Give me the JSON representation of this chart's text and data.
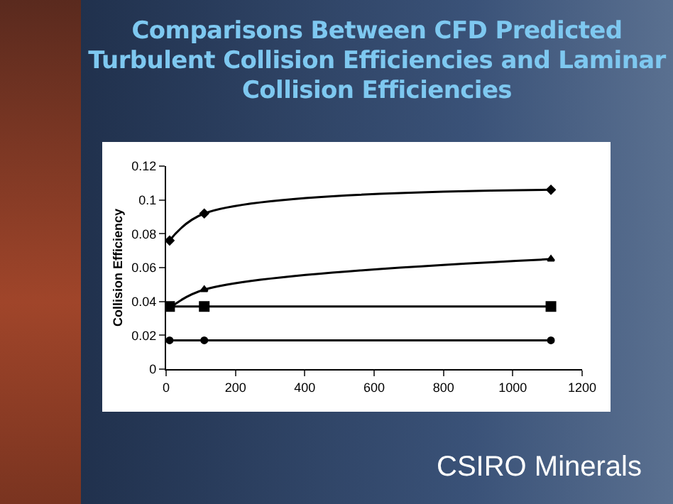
{
  "chart_data": {
    "type": "line",
    "title": "Comparisons Between CFD Predicted Turbulent Collision Efficiencies and Laminar Collision Efficiencies",
    "ylabel": "Collision Efficiency",
    "annotations": [
      "CSIRO Minerals"
    ],
    "x": [
      10,
      110,
      1110
    ],
    "series": [
      {
        "color": "#000000",
        "marker": "diamond",
        "values": [
          0.076,
          0.092,
          0.106
        ]
      },
      {
        "color": "#000000",
        "marker": "triangle",
        "values": [
          0.036,
          0.047,
          0.065
        ]
      },
      {
        "color": "#000000",
        "marker": "square",
        "values": [
          0.037,
          0.037,
          0.037
        ]
      },
      {
        "color": "#000000",
        "marker": "circle",
        "values": [
          0.017,
          0.017,
          0.017
        ]
      }
    ],
    "xlim": [
      0,
      1200
    ],
    "xticks": [
      0,
      200,
      400,
      600,
      800,
      1000,
      1200
    ],
    "ylim": [
      0,
      0.12
    ],
    "yticks": [
      0,
      0.02,
      0.04,
      0.06,
      0.08,
      0.1,
      0.12
    ],
    "grid": false
  }
}
